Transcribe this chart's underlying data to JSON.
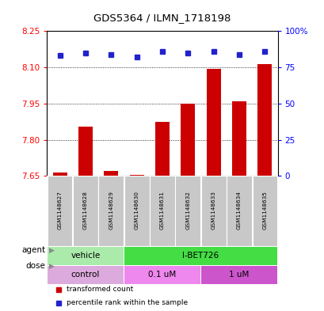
{
  "title": "GDS5364 / ILMN_1718198",
  "samples": [
    "GSM1148627",
    "GSM1148628",
    "GSM1148629",
    "GSM1148630",
    "GSM1148631",
    "GSM1148632",
    "GSM1148633",
    "GSM1148634",
    "GSM1148635"
  ],
  "bar_values": [
    7.665,
    7.855,
    7.67,
    7.655,
    7.875,
    7.95,
    8.095,
    7.96,
    8.115
  ],
  "percentile_values": [
    83,
    85,
    84,
    82,
    86,
    85,
    86,
    84,
    86
  ],
  "ylim_left": [
    7.65,
    8.25
  ],
  "yticks_left": [
    7.65,
    7.8,
    7.95,
    8.1,
    8.25
  ],
  "yticks_right": [
    0,
    25,
    50,
    75,
    100
  ],
  "bar_color": "#cc0000",
  "dot_color": "#2222cc",
  "agent_groups": [
    {
      "label": "vehicle",
      "start": 0,
      "end": 3,
      "color": "#aaeaaa"
    },
    {
      "label": "I-BET726",
      "start": 3,
      "end": 9,
      "color": "#44dd44"
    }
  ],
  "dose_groups": [
    {
      "label": "control",
      "start": 0,
      "end": 3,
      "color": "#ddaadd"
    },
    {
      "label": "0.1 uM",
      "start": 3,
      "end": 6,
      "color": "#ee88ee"
    },
    {
      "label": "1 uM",
      "start": 6,
      "end": 9,
      "color": "#cc55cc"
    }
  ],
  "legend_items": [
    {
      "label": "transformed count",
      "color": "#cc0000"
    },
    {
      "label": "percentile rank within the sample",
      "color": "#2222cc"
    }
  ],
  "background_color": "#ffffff",
  "plot_bg_color": "#ffffff",
  "sample_bg_color": "#c8c8c8",
  "sample_border_color": "#888888"
}
